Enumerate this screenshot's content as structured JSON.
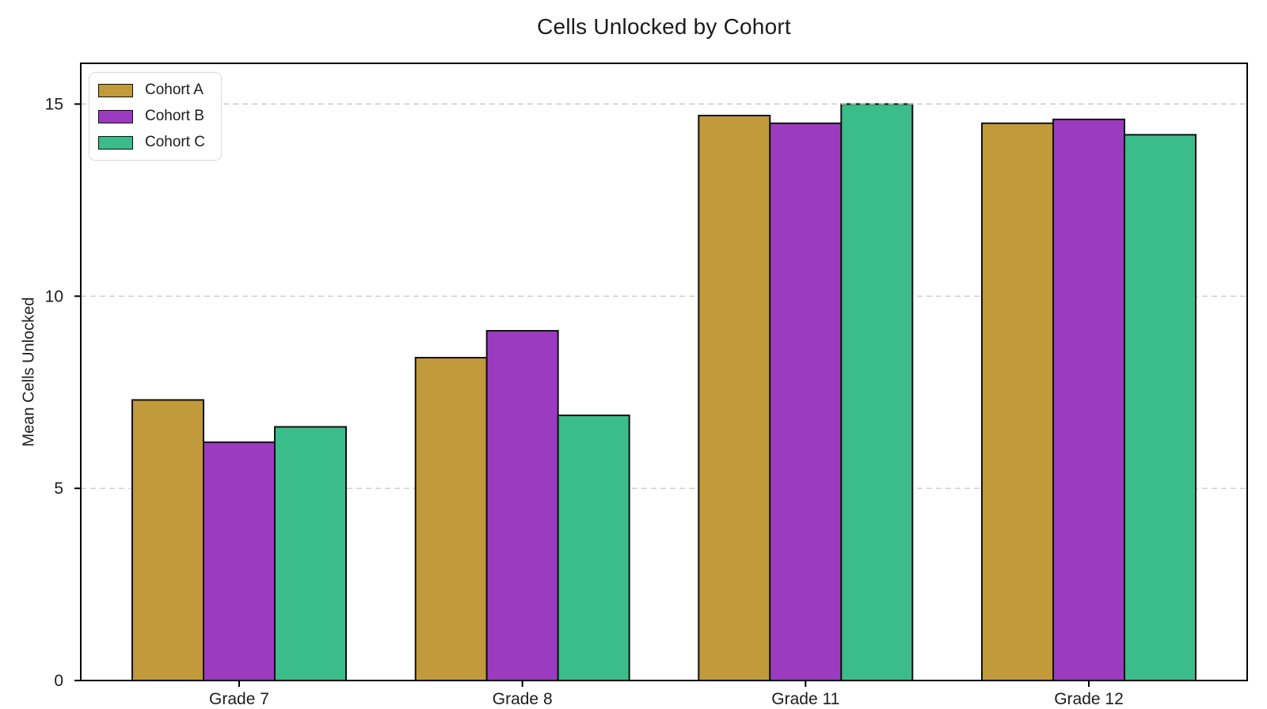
{
  "chart_data": {
    "type": "bar",
    "title": "Cells Unlocked by Cohort",
    "xlabel": "",
    "ylabel": "Mean Cells Unlocked",
    "categories": [
      "Grade 7",
      "Grade 8",
      "Grade 11",
      "Grade 12"
    ],
    "series": [
      {
        "name": "Cohort A",
        "color": "#C19A3B",
        "values": [
          7.3,
          8.4,
          14.7,
          14.5
        ]
      },
      {
        "name": "Cohort B",
        "color": "#9B3BC0",
        "values": [
          6.2,
          9.1,
          14.5,
          14.6
        ]
      },
      {
        "name": "Cohort C",
        "color": "#3BBC8B",
        "values": [
          6.6,
          6.9,
          15.0,
          14.2
        ]
      }
    ],
    "yticks": [
      0,
      5,
      10,
      15
    ],
    "ytick_labels": [
      "0",
      "5",
      "10",
      "15"
    ],
    "ylim": [
      0,
      16.06
    ],
    "grid": "horizontal-dashed",
    "grid_color": "#cccccc",
    "bar_edge_color": "#111111",
    "spine_color": "#000000",
    "text_color": "#1c1c1c",
    "legend_position": "upper-left",
    "legend_border_color": "#d9d9d9"
  }
}
